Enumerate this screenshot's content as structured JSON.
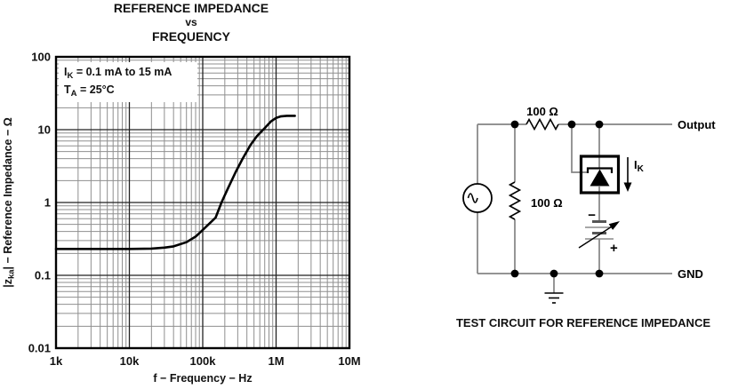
{
  "chart": {
    "title_line1": "REFERENCE IMPEDANCE",
    "title_line2": "vs",
    "title_line3": "FREQUENCY",
    "annotation": {
      "l1_pre": "I",
      "l1_sub": "K",
      "l1_post": " = 0.1 mA to 15 mA",
      "l2_pre": "T",
      "l2_sub": "A",
      "l2_post": " = 25°C"
    },
    "x_axis": {
      "label": "f − Frequency − Hz",
      "ticks": [
        "1k",
        "10k",
        "100k",
        "1M",
        "10M"
      ]
    },
    "y_axis": {
      "label_pre": "|z",
      "label_sub": "ka",
      "label_post": "| − Reference Impedance − Ω",
      "ticks": [
        "100",
        "10",
        "1",
        "0.1",
        "0.01"
      ]
    }
  },
  "chart_data": {
    "type": "line",
    "title": "REFERENCE IMPEDANCE vs FREQUENCY",
    "xlabel": "f − Frequency − Hz",
    "ylabel": "|zka| − Reference Impedance − Ω",
    "x_scale": "log",
    "y_scale": "log",
    "xlim": [
      1000,
      10000000
    ],
    "ylim": [
      0.01,
      100
    ],
    "grid": "on",
    "conditions": [
      "IK = 0.1 mA to 15 mA",
      "TA = 25°C"
    ],
    "series": [
      {
        "name": "|zka| Reference Impedance (Ω)",
        "points": [
          [
            1000,
            0.23
          ],
          [
            2000,
            0.23
          ],
          [
            5000,
            0.23
          ],
          [
            10000,
            0.23
          ],
          [
            20000,
            0.233
          ],
          [
            30000,
            0.24
          ],
          [
            40000,
            0.25
          ],
          [
            60000,
            0.285
          ],
          [
            80000,
            0.34
          ],
          [
            100000,
            0.42
          ],
          [
            120000,
            0.5
          ],
          [
            150000,
            0.62
          ],
          [
            180000,
            1.0
          ],
          [
            220000,
            1.55
          ],
          [
            280000,
            2.6
          ],
          [
            350000,
            4.0
          ],
          [
            450000,
            6.2
          ],
          [
            550000,
            8.2
          ],
          [
            700000,
            10.5
          ],
          [
            850000,
            13.0
          ],
          [
            1000000,
            14.5
          ],
          [
            1150000,
            15.2
          ],
          [
            1400000,
            15.5
          ],
          [
            1800000,
            15.5
          ]
        ]
      }
    ]
  },
  "circuit": {
    "resistor_series_label": "100 Ω",
    "resistor_shunt_label": "100 Ω",
    "output_label": "Output",
    "gnd_label": "GND",
    "ik_pre": "I",
    "ik_sub": "K",
    "battery_minus": "−",
    "battery_plus": "+",
    "caption": "TEST CIRCUIT FOR REFERENCE IMPEDANCE"
  }
}
